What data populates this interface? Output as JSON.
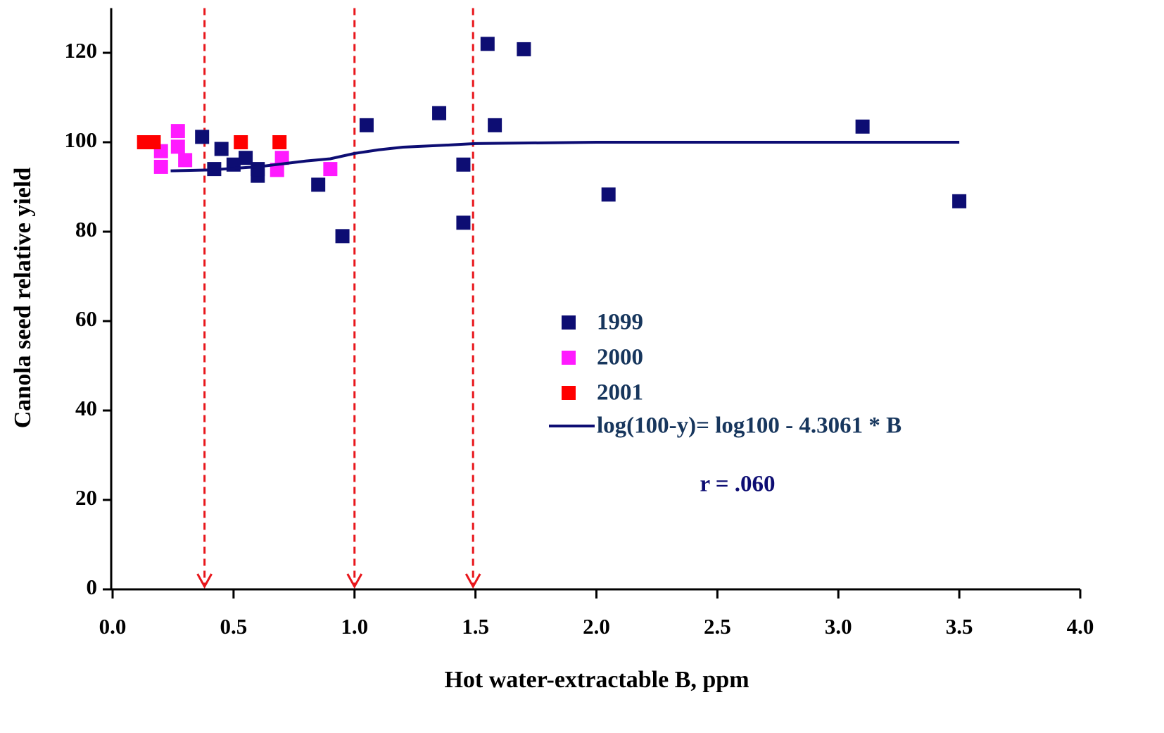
{
  "chart_data": {
    "type": "scatter",
    "x_label": "Hot water-extractable B, ppm",
    "y_label": "Canola seed relative yield",
    "xlim": [
      0,
      4
    ],
    "ylim": [
      0,
      130
    ],
    "xticks": [
      {
        "value": 0,
        "label": "0.0"
      },
      0.5,
      {
        "value": 1,
        "label": "1.0"
      },
      1.5,
      {
        "value": 2,
        "label": "2.0"
      },
      2.5,
      {
        "value": 3,
        "label": "3.0"
      },
      3.5,
      {
        "value": 4,
        "label": "4.0"
      }
    ],
    "yticks": [
      0,
      20,
      40,
      60,
      80,
      100,
      120
    ],
    "reference_lines": {
      "color": "#e8161b",
      "x": [
        0.38,
        1.0,
        1.49
      ]
    },
    "annotation": "r = .060",
    "series": [
      {
        "name": "1999",
        "type": "scatter",
        "color": "#0d0d73",
        "x": [
          0.37,
          0.45,
          0.42,
          0.5,
          0.55,
          0.6,
          0.6,
          0.85,
          0.95,
          1.05,
          1.35,
          1.45,
          1.45,
          1.55,
          1.58,
          1.7,
          2.05,
          3.1,
          3.5
        ],
        "values": [
          101.2,
          98.5,
          94,
          95,
          96.5,
          92.5,
          94,
          90.5,
          79,
          103.8,
          106.5,
          95,
          82,
          122,
          103.8,
          120.8,
          88.3,
          103.5,
          86.8
        ]
      },
      {
        "name": "2000",
        "type": "scatter",
        "color": "#ff1aff",
        "x": [
          0.2,
          0.2,
          0.27,
          0.27,
          0.3,
          0.68,
          0.7,
          0.9
        ],
        "values": [
          98,
          94.5,
          102.5,
          99,
          96,
          93.8,
          96.5,
          94
        ]
      },
      {
        "name": "2001",
        "type": "scatter",
        "color": "#ff0000",
        "x": [
          0.13,
          0.17,
          0.53,
          0.69
        ],
        "values": [
          100,
          100,
          100,
          100
        ]
      },
      {
        "name": "log(100-y)= log100 - 4.3061 * B",
        "type": "line",
        "color": "#0d0d73",
        "x": [
          0.24,
          0.4,
          0.6,
          0.8,
          0.9,
          1.0,
          1.1,
          1.2,
          1.4,
          1.5,
          2.0,
          3.5
        ],
        "values": [
          93.6,
          93.8,
          94.5,
          95.8,
          96.3,
          97.5,
          98.3,
          98.9,
          99.4,
          99.7,
          100,
          100
        ]
      }
    ]
  }
}
